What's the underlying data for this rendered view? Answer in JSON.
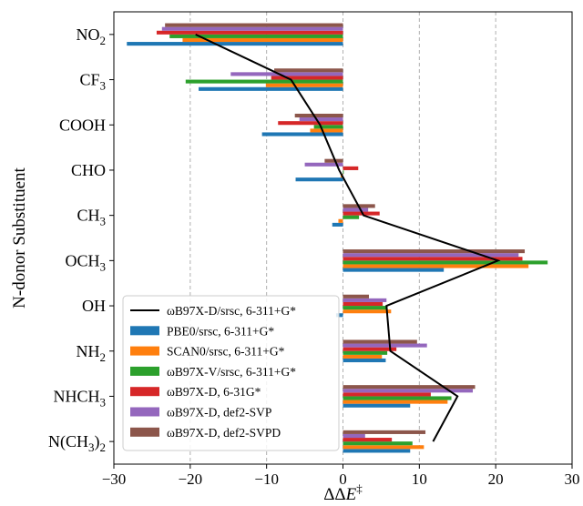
{
  "chart_data": {
    "type": "bar",
    "orientation": "horizontal",
    "xlabel": "ΔΔE‡",
    "ylabel": "N-donor Substituent",
    "xlim": [
      -30,
      30
    ],
    "xticks": [
      -30,
      -20,
      -10,
      0,
      10,
      20,
      30
    ],
    "xtick_labels": [
      "−30",
      "−20",
      "−10",
      "0",
      "10",
      "20",
      "30"
    ],
    "grid": "vertical dashed",
    "legend_position": "lower-left",
    "categories": [
      {
        "base": "NO",
        "sub": "2"
      },
      {
        "base": "CF",
        "sub": "3"
      },
      {
        "base": "COOH",
        "sub": ""
      },
      {
        "base": "CHO",
        "sub": ""
      },
      {
        "base": "CH",
        "sub": "3"
      },
      {
        "base": "OCH",
        "sub": "3"
      },
      {
        "base": "OH",
        "sub": ""
      },
      {
        "base": "NH",
        "sub": "2"
      },
      {
        "base": "NHCH",
        "sub": "3"
      },
      {
        "base": "N(CH",
        "sub": "3",
        "tail": ")",
        "tail_sub": "2"
      }
    ],
    "line_series": {
      "name": "ωB97X-D/srsc, 6-311+G*",
      "color": "#000000",
      "values": [
        -19.3,
        -6.8,
        -3.0,
        -0.5,
        2.7,
        20.3,
        5.7,
        6.2,
        15.0,
        11.8
      ]
    },
    "series": [
      {
        "name": "PBE0/srsc, 6-311+G*",
        "color": "#1f77b4",
        "values": [
          -28.3,
          -18.9,
          -10.6,
          -6.2,
          -1.4,
          13.2,
          -0.9,
          5.6,
          8.8,
          8.8
        ]
      },
      {
        "name": "SCAN0/srsc, 6-311+G*",
        "color": "#ff7f0e",
        "values": [
          -21.0,
          -10.1,
          -4.3,
          -0.3,
          -0.6,
          24.3,
          6.3,
          5.1,
          13.7,
          10.6
        ]
      },
      {
        "name": "ωB97X-V/srsc, 6-311+G*",
        "color": "#2ca02c",
        "values": [
          -22.7,
          -20.6,
          -3.8,
          0.1,
          2.1,
          26.8,
          5.8,
          5.8,
          14.2,
          9.1
        ]
      },
      {
        "name": "ωB97X-D, 6-31G*",
        "color": "#d62728",
        "values": [
          -24.4,
          -9.4,
          -8.5,
          2.0,
          4.8,
          23.5,
          5.2,
          7.0,
          11.5,
          6.4
        ]
      },
      {
        "name": "ωB97X-D, def2-SVP",
        "color": "#9467bd",
        "values": [
          -23.7,
          -14.7,
          -5.7,
          -5.0,
          3.3,
          23.0,
          5.7,
          11.0,
          17.0,
          2.9
        ]
      },
      {
        "name": "ωB97X-D, def2-SVPD",
        "color": "#8c564b",
        "values": [
          -23.3,
          -9.0,
          -6.3,
          -2.4,
          4.2,
          23.8,
          3.4,
          9.7,
          17.3,
          10.8
        ]
      }
    ]
  }
}
